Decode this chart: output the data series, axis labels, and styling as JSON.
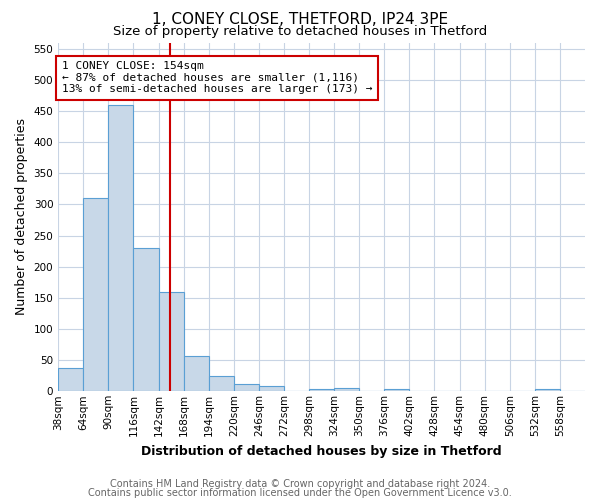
{
  "title": "1, CONEY CLOSE, THETFORD, IP24 3PE",
  "subtitle": "Size of property relative to detached houses in Thetford",
  "xlabel": "Distribution of detached houses by size in Thetford",
  "ylabel": "Number of detached properties",
  "footnote1": "Contains HM Land Registry data © Crown copyright and database right 2024.",
  "footnote2": "Contains public sector information licensed under the Open Government Licence v3.0.",
  "bin_labels": [
    "38sqm",
    "64sqm",
    "90sqm",
    "116sqm",
    "142sqm",
    "168sqm",
    "194sqm",
    "220sqm",
    "246sqm",
    "272sqm",
    "298sqm",
    "324sqm",
    "350sqm",
    "376sqm",
    "402sqm",
    "428sqm",
    "454sqm",
    "480sqm",
    "506sqm",
    "532sqm",
    "558sqm"
  ],
  "bin_values": [
    38,
    310,
    460,
    230,
    160,
    57,
    25,
    12,
    9,
    0,
    4,
    5,
    0,
    3,
    0,
    0,
    0,
    0,
    0,
    4,
    0
  ],
  "bin_edges": [
    38,
    64,
    90,
    116,
    142,
    168,
    194,
    220,
    246,
    272,
    298,
    324,
    350,
    376,
    402,
    428,
    454,
    480,
    506,
    532,
    558
  ],
  "bar_color": "#c8d8e8",
  "bar_edge_color": "#5a9fd4",
  "property_value": 154,
  "vline_color": "#cc0000",
  "annotation_text": "1 CONEY CLOSE: 154sqm\n← 87% of detached houses are smaller (1,116)\n13% of semi-detached houses are larger (173) →",
  "annotation_box_color": "#ffffff",
  "annotation_box_edge": "#cc0000",
  "ylim": [
    0,
    560
  ],
  "yticks": [
    0,
    50,
    100,
    150,
    200,
    250,
    300,
    350,
    400,
    450,
    500,
    550
  ],
  "grid_color": "#c8d4e4",
  "title_fontsize": 11,
  "subtitle_fontsize": 9.5,
  "axis_label_fontsize": 9,
  "tick_fontsize": 7.5,
  "annotation_fontsize": 8,
  "footnote_fontsize": 7
}
